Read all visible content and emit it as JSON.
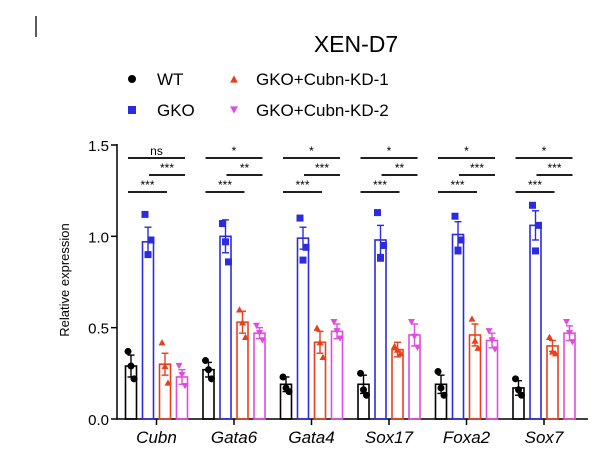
{
  "chart_data": {
    "type": "bar",
    "title": "XEN-D7",
    "xlabel": "",
    "ylabel": "Relative expression",
    "ylim": [
      0,
      1.5
    ],
    "yticks": [
      "0.0",
      "0.5",
      "1.0",
      "1.5"
    ],
    "categories": [
      "Cubn",
      "Gata6",
      "Gata4",
      "Sox17",
      "Foxa2",
      "Sox7"
    ],
    "series": [
      {
        "name": "WT",
        "color": "#000000",
        "marker": "circle",
        "values": [
          0.29,
          0.27,
          0.19,
          0.19,
          0.19,
          0.17
        ],
        "errors": [
          0.06,
          0.04,
          0.04,
          0.05,
          0.05,
          0.04
        ],
        "points": [
          [
            0.37,
            0.29,
            0.22
          ],
          [
            0.32,
            0.27,
            0.22
          ],
          [
            0.23,
            0.17,
            0.15
          ],
          [
            0.25,
            0.16,
            0.13
          ],
          [
            0.26,
            0.17,
            0.13
          ],
          [
            0.22,
            0.16,
            0.13
          ]
        ]
      },
      {
        "name": "GKO",
        "color": "#2d2be0",
        "marker": "square",
        "values": [
          0.97,
          1.0,
          0.99,
          0.98,
          1.01,
          1.06
        ],
        "errors": [
          0.08,
          0.09,
          0.06,
          0.08,
          0.07,
          0.08
        ],
        "points": [
          [
            1.12,
            0.9,
            0.98
          ],
          [
            1.07,
            0.97,
            0.86
          ],
          [
            1.1,
            0.87,
            0.94
          ],
          [
            1.13,
            0.88,
            0.95
          ],
          [
            1.11,
            0.92,
            0.98
          ],
          [
            1.17,
            0.92,
            1.06
          ]
        ]
      },
      {
        "name": "GKO+Cubn-KD-1",
        "color": "#e8401c",
        "marker": "triangle-up",
        "values": [
          0.3,
          0.53,
          0.42,
          0.38,
          0.46,
          0.4
        ],
        "errors": [
          0.06,
          0.06,
          0.06,
          0.04,
          0.06,
          0.03
        ],
        "points": [
          [
            0.42,
            0.29,
            0.2
          ],
          [
            0.6,
            0.53,
            0.45
          ],
          [
            0.5,
            0.42,
            0.34
          ],
          [
            0.4,
            0.38,
            0.36
          ],
          [
            0.55,
            0.43,
            0.39
          ],
          [
            0.45,
            0.37,
            0.36
          ]
        ]
      },
      {
        "name": "GKO+Cubn-KD-2",
        "color": "#e04be0",
        "marker": "triangle-down",
        "values": [
          0.23,
          0.47,
          0.48,
          0.46,
          0.43,
          0.47
        ],
        "errors": [
          0.04,
          0.03,
          0.04,
          0.06,
          0.04,
          0.04
        ],
        "points": [
          [
            0.29,
            0.24,
            0.18
          ],
          [
            0.51,
            0.47,
            0.43
          ],
          [
            0.53,
            0.48,
            0.44
          ],
          [
            0.53,
            0.45,
            0.39
          ],
          [
            0.48,
            0.43,
            0.38
          ],
          [
            0.53,
            0.47,
            0.42
          ]
        ]
      }
    ],
    "significance": [
      {
        "top": "ns",
        "upper": "***",
        "lower": "***"
      },
      {
        "top": "*",
        "upper": "**",
        "lower": "***"
      },
      {
        "top": "*",
        "upper": "***",
        "lower": "***"
      },
      {
        "top": "*",
        "upper": "**",
        "lower": "***"
      },
      {
        "top": "*",
        "upper": "***",
        "lower": "***"
      },
      {
        "top": "*",
        "upper": "***",
        "lower": "***"
      }
    ]
  }
}
